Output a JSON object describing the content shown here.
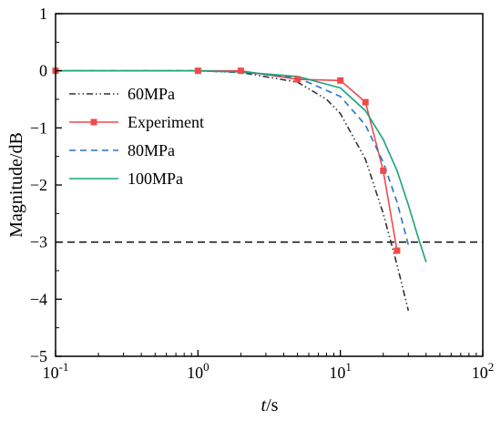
{
  "chart_data": {
    "type": "line",
    "xscale": "log",
    "xlim": [
      0.1,
      100
    ],
    "ylim": [
      -5,
      1
    ],
    "xlabel": {
      "italic": "t",
      "rest": "/s"
    },
    "ylabel": "Magnitude/dB",
    "x_ticks": [
      {
        "base": "10",
        "exp": "-1",
        "value": 0.1
      },
      {
        "base": "10",
        "exp": "0",
        "value": 1
      },
      {
        "base": "10",
        "exp": "1",
        "value": 10
      },
      {
        "base": "10",
        "exp": "2",
        "value": 100
      }
    ],
    "y_ticks": [
      "1",
      "0",
      "-1",
      "-2",
      "-3",
      "-4",
      "-5"
    ],
    "legend_position": "left",
    "reference_line": {
      "y": -3,
      "color": "#000000",
      "style": "dashed"
    },
    "series": [
      {
        "name": "60MPa",
        "color": "#333333",
        "style": "dashdotdot",
        "marker": "none",
        "x": [
          0.1,
          1,
          2,
          5,
          8,
          10,
          15,
          20,
          25,
          30
        ],
        "y": [
          0,
          0,
          -0.03,
          -0.2,
          -0.5,
          -0.75,
          -1.55,
          -2.5,
          -3.4,
          -4.2
        ]
      },
      {
        "name": "Experiment",
        "color": "#f04a4a",
        "style": "solid",
        "marker": "square",
        "x": [
          0.1,
          1,
          2,
          5,
          10,
          15,
          20,
          25
        ],
        "y": [
          0,
          0,
          0,
          -0.15,
          -0.17,
          -0.55,
          -1.75,
          -3.15
        ]
      },
      {
        "name": "80MPa",
        "color": "#2a6fc9",
        "style": "dashed",
        "marker": "none",
        "x": [
          0.1,
          1,
          2,
          5,
          10,
          15,
          20,
          25,
          30
        ],
        "y": [
          0,
          0,
          -0.02,
          -0.12,
          -0.45,
          -0.95,
          -1.6,
          -2.3,
          -3.05
        ]
      },
      {
        "name": "100MPa",
        "color": "#1aa37a",
        "style": "solid",
        "marker": "none",
        "x": [
          0.1,
          1,
          2,
          5,
          10,
          15,
          20,
          25,
          30,
          35,
          40
        ],
        "y": [
          0,
          0,
          -0.02,
          -0.1,
          -0.3,
          -0.7,
          -1.2,
          -1.75,
          -2.35,
          -2.9,
          -3.35
        ]
      }
    ]
  }
}
